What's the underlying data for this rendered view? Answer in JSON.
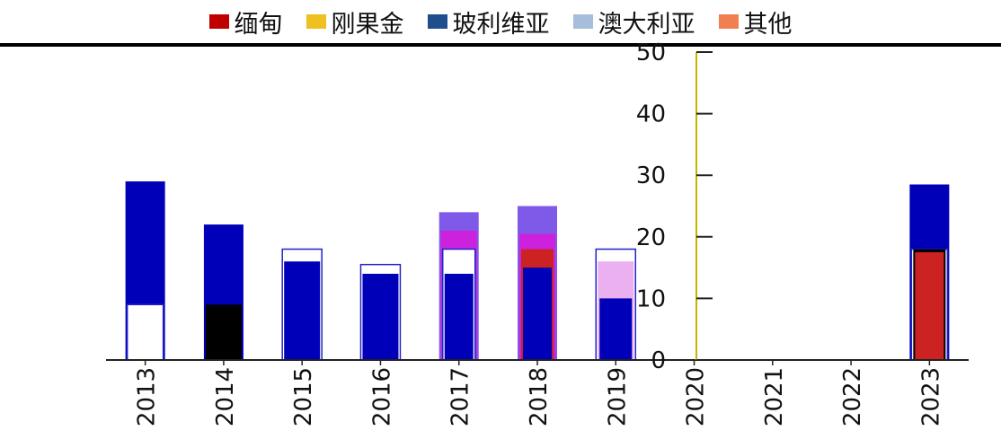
{
  "legend": {
    "items": [
      {
        "label": "缅甸",
        "color": "#c00000"
      },
      {
        "label": "刚果金",
        "color": "#f0c020"
      },
      {
        "label": "玻利维亚",
        "color": "#1f4e8c"
      },
      {
        "label": "澳大利亚",
        "color": "#a6bddb"
      },
      {
        "label": "其他",
        "color": "#f08050"
      }
    ]
  },
  "colors": {
    "axis": "#222222",
    "tick_text": "#111111",
    "accent_yellow": "#c8b400"
  },
  "chart_data": {
    "type": "bar",
    "title": "",
    "xlabel": "",
    "ylabel": "",
    "ylim": [
      0,
      50
    ],
    "yticks": [
      0,
      10,
      20,
      30,
      40,
      50
    ],
    "categories": [
      "2013",
      "2014",
      "2015",
      "2016",
      "2017",
      "2018",
      "2019",
      "2020",
      "2021",
      "2022",
      "2023"
    ],
    "series": [
      {
        "color": "#0000b8",
        "values": [
          29,
          22,
          16,
          14,
          14,
          15,
          10,
          0,
          0,
          0,
          28.5
        ]
      },
      {
        "color": "#ffffff",
        "outline": "#2222cc",
        "values": [
          9,
          0,
          18,
          15.5,
          18,
          0,
          18,
          0,
          0,
          0,
          18
        ]
      },
      {
        "color": "#cc2222",
        "values": [
          0,
          0,
          0,
          0,
          0,
          18,
          0,
          0,
          0,
          0,
          17.5
        ]
      },
      {
        "color": "#000000",
        "values": [
          0,
          9,
          0,
          0,
          0,
          0,
          0,
          0,
          0,
          0,
          18
        ]
      },
      {
        "color": "#cc22dd",
        "values": [
          0,
          0,
          0,
          0,
          21,
          20.5,
          0,
          0,
          0,
          0,
          0
        ]
      },
      {
        "color": "#7f5ae8",
        "values": [
          0,
          0,
          0,
          0,
          24,
          25,
          0,
          0,
          0,
          0,
          0
        ]
      },
      {
        "color": "#eab0f0",
        "values": [
          0,
          0,
          0,
          0,
          0,
          0,
          16,
          0,
          0,
          0,
          0
        ]
      }
    ],
    "grid": false,
    "legend_position": "top"
  }
}
